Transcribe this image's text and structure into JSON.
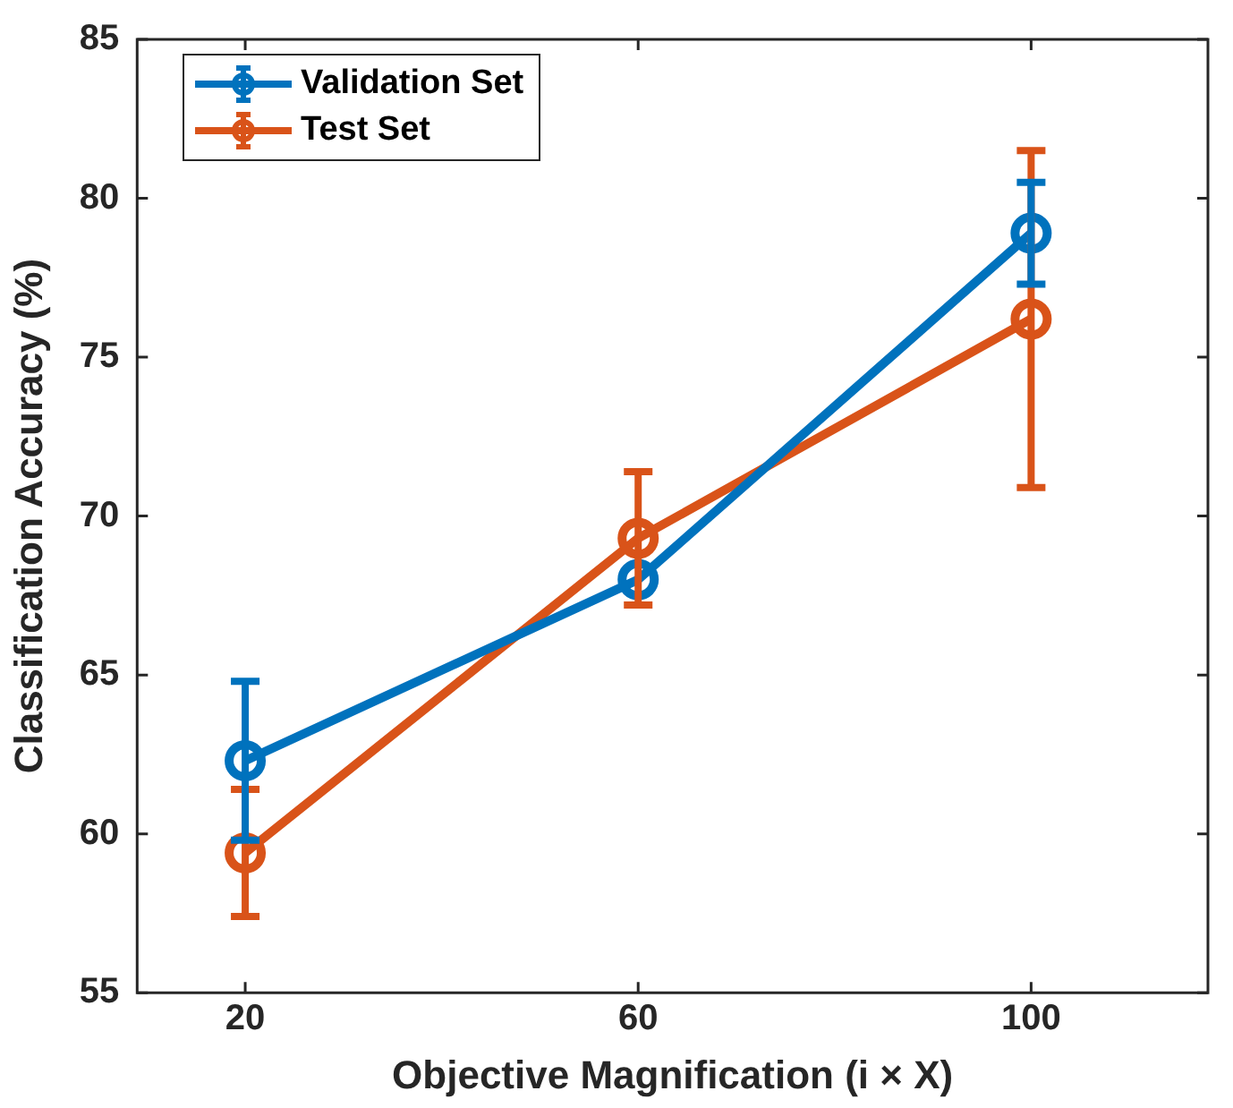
{
  "chart_data": {
    "type": "line",
    "xlabel": "Objective Magnification (i × X)",
    "ylabel": "Classification Accuracy (%)",
    "x": [
      20,
      60,
      100
    ],
    "series": [
      {
        "name": "Validation Set",
        "color": "#0072bd",
        "values": [
          62.3,
          68.0,
          78.9
        ],
        "errors": [
          2.5,
          null,
          1.6
        ]
      },
      {
        "name": "Test Set",
        "color": "#d95319",
        "values": [
          59.4,
          69.3,
          76.2
        ],
        "errors": [
          2.0,
          2.1,
          5.3
        ]
      }
    ],
    "xlim": [
      9,
      118
    ],
    "xticks": [
      20,
      60,
      100
    ],
    "ylim": [
      55,
      85
    ],
    "yticks": [
      55,
      60,
      65,
      70,
      75,
      80,
      85
    ],
    "grid": false,
    "legend": "top left",
    "marker": "circle",
    "line_style": "solid"
  }
}
